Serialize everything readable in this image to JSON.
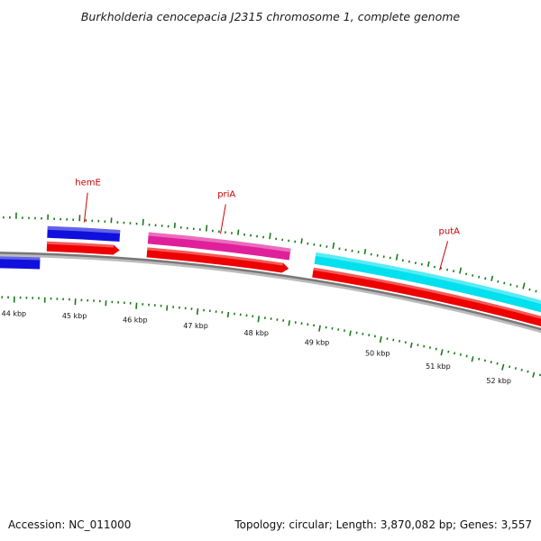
{
  "title": "Burkholderia cenocepacia J2315 chromosome 1, complete genome",
  "footer": {
    "accession": "Accession: NC_011000",
    "summary": "Topology: circular; Length: 3,870,082 bp; Genes: 3,557"
  },
  "colors": {
    "gene_blue": "#1010dd",
    "gene_magenta": "#e0209a",
    "gene_cyan": "#00e0ee",
    "cds_red": "#ee0000",
    "tick_green": "#1a7a1a",
    "backbone": "#888888",
    "label_red": "#cc0000"
  },
  "kbp_labels": [
    "44 kbp",
    "45 kbp",
    "46 kbp",
    "47 kbp",
    "48 kbp",
    "49 kbp",
    "50 kbp",
    "51 kbp",
    "52 kbp"
  ],
  "genes": [
    {
      "name": "hemE",
      "start_kbp": 44.5,
      "end_kbp": 45.65,
      "color": "#1010dd"
    },
    {
      "name": "priA",
      "start_kbp": 46.1,
      "end_kbp": 48.35,
      "color": "#e0209a"
    },
    {
      "name": "putA",
      "start_kbp": 48.75,
      "end_kbp": 52.6,
      "color": "#00e0ee"
    }
  ],
  "partial_gene_left": {
    "end_kbp": 44.4,
    "color": "#1010dd"
  }
}
